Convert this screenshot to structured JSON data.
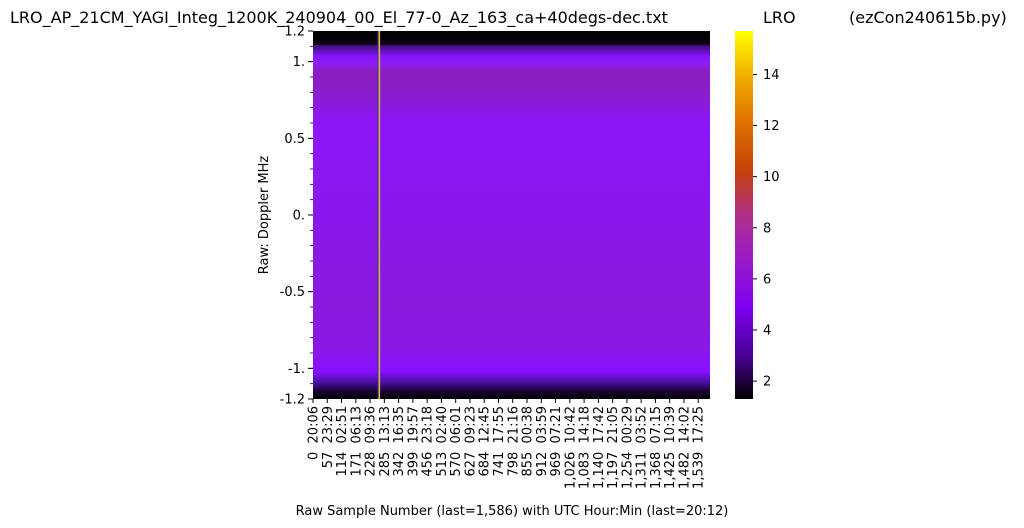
{
  "header": {
    "title": "LRO_AP_21CM_YAGI_Integ_1200K_240904_00_El_77-0_Az_163_ca+40degs-dec.txt",
    "station": "LRO",
    "program": "(ezCon240615b.py)"
  },
  "chart_data": {
    "type": "heatmap",
    "title": "LRO_AP_21CM_YAGI_Integ_1200K_240904_00_El_77-0_Az_163_ca+40degs-dec.txt",
    "xlabel": "Raw Sample Number (last=1,586) with UTC Hour:Min (last=20:12)",
    "ylabel": "Raw:  Doppler MHz",
    "x_range": [
      0,
      1586
    ],
    "ylim": [
      -1.2,
      1.2
    ],
    "y_ticks": [
      "1.2",
      "1.",
      "0.5",
      "0.",
      "-0.5",
      "-1.",
      "-1.2"
    ],
    "y_tick_values": [
      1.2,
      1.0,
      0.5,
      0.0,
      -0.5,
      -1.0,
      -1.2
    ],
    "x_ticks": [
      {
        "sample": 0,
        "label": "0  20:06"
      },
      {
        "sample": 57,
        "label": "57  23:29"
      },
      {
        "sample": 114,
        "label": "114  02:51"
      },
      {
        "sample": 171,
        "label": "171  06:13"
      },
      {
        "sample": 228,
        "label": "228  09:36"
      },
      {
        "sample": 285,
        "label": "285  13:13"
      },
      {
        "sample": 342,
        "label": "342  16:35"
      },
      {
        "sample": 399,
        "label": "399  19:57"
      },
      {
        "sample": 456,
        "label": "456  23:18"
      },
      {
        "sample": 513,
        "label": "513  02:40"
      },
      {
        "sample": 570,
        "label": "570  06:01"
      },
      {
        "sample": 627,
        "label": "627  09:23"
      },
      {
        "sample": 684,
        "label": "684  12:45"
      },
      {
        "sample": 741,
        "label": "741  17:55"
      },
      {
        "sample": 798,
        "label": "798  21:16"
      },
      {
        "sample": 855,
        "label": "855  00:38"
      },
      {
        "sample": 912,
        "label": "912  03:59"
      },
      {
        "sample": 969,
        "label": "969  07:21"
      },
      {
        "sample": 1026,
        "label": "1,026  10:42"
      },
      {
        "sample": 1083,
        "label": "1,083  14:18"
      },
      {
        "sample": 1140,
        "label": "1,140  17:42"
      },
      {
        "sample": 1197,
        "label": "1,197  21:05"
      },
      {
        "sample": 1254,
        "label": "1,254  00:29"
      },
      {
        "sample": 1311,
        "label": "1,311  03:52"
      },
      {
        "sample": 1368,
        "label": "1,368  07:15"
      },
      {
        "sample": 1425,
        "label": "1,425  10:39"
      },
      {
        "sample": 1482,
        "label": "1,482  14:02"
      },
      {
        "sample": 1539,
        "label": "1,539  17:25"
      }
    ],
    "spike_sample": 265,
    "colorbar": {
      "colormap": "gnuplot",
      "min": 1.3,
      "max": 15.7,
      "ticks": [
        2,
        4,
        6,
        8,
        10,
        12,
        14
      ]
    },
    "grid": false,
    "legend": "none"
  }
}
